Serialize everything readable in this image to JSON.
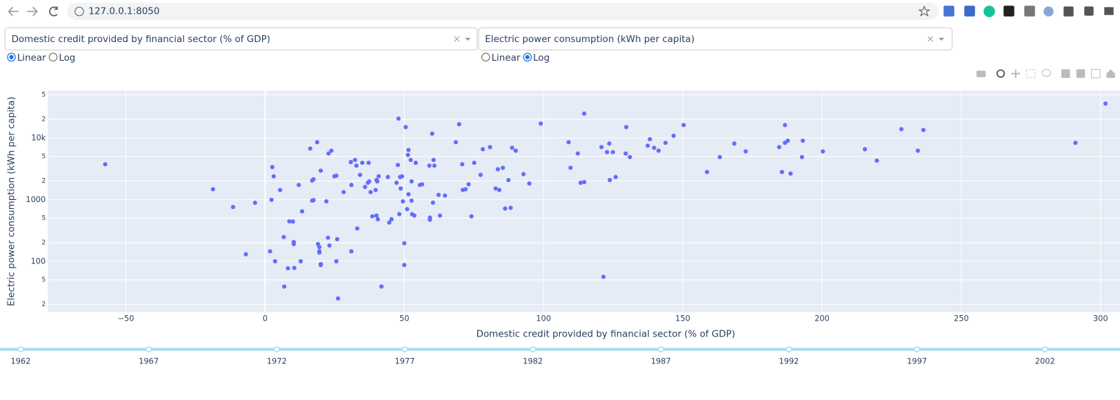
{
  "browser": {
    "url": "127.0.0.1:8050"
  },
  "controls": {
    "x_dropdown": "Domestic credit provided by financial sector (% of GDP)",
    "y_dropdown": "Electric power consumption (kWh per capita)",
    "x_scale": {
      "options": [
        "Linear",
        "Log"
      ],
      "selected": "Linear"
    },
    "y_scale": {
      "options": [
        "Linear",
        "Log"
      ],
      "selected": "Log"
    }
  },
  "chart_data": {
    "type": "scatter",
    "x_label": "Domestic credit provided by financial sector (% of GDP)",
    "y_label": "Electric power consumption (kWh per capita)",
    "color": "#636efa",
    "ylog": true,
    "grid": true,
    "xlim": [
      -78,
      307
    ],
    "ylim": [
      15,
      58000
    ],
    "xticks": [
      {
        "value": -50,
        "label": "−50"
      },
      0,
      50,
      100,
      150,
      200,
      250,
      300
    ],
    "yticks": [
      {
        "value": 20,
        "label": "2"
      },
      {
        "value": 50,
        "label": "5"
      },
      100,
      {
        "value": 200,
        "label": "2"
      },
      {
        "value": 500,
        "label": "5"
      },
      1000,
      {
        "value": 2000,
        "label": "2"
      },
      {
        "value": 5000,
        "label": "5"
      },
      {
        "value": 10000,
        "label": "10k"
      },
      {
        "value": 20000,
        "label": "2"
      },
      {
        "value": 50000,
        "label": "5"
      }
    ],
    "x": [
      -57.4,
      -18.7,
      -11.5,
      -3.6,
      -6.9,
      1.8,
      2.3,
      2.6,
      3.1,
      3.6,
      5.4,
      6.7,
      6.9,
      8.2,
      8.7,
      10,
      10.3,
      10.3,
      10.5,
      12.1,
      12.8,
      13.3,
      16.2,
      16.9,
      17.4,
      16.9,
      17.4,
      18.7,
      19,
      19.5,
      19.5,
      19.5,
      20,
      20,
      20,
      22,
      22.6,
      22.8,
      23.1,
      23.8,
      24.9,
      25.6,
      25.6,
      25.9,
      26.2,
      28.2,
      30.8,
      31,
      31,
      32.3,
      32.8,
      33.1,
      34.1,
      34.9,
      35.9,
      36.9,
      37.2,
      37.4,
      37.9,
      38.5,
      39.7,
      40,
      40,
      40.3,
      40.5,
      40.8,
      41.8,
      44.1,
      44.6,
      45.4,
      47.2,
      47.7,
      47.9,
      48.2,
      48.5,
      48.7,
      49.2,
      49.5,
      50,
      50,
      50.5,
      51,
      51.3,
      51.5,
      51.5,
      52.3,
      52.6,
      52.6,
      52.8,
      53.6,
      54.1,
      55.6,
      56.4,
      59,
      59.2,
      59.2,
      60,
      60.3,
      60.5,
      60.8,
      62.3,
      62.8,
      64.6,
      68.5,
      69.7,
      70.8,
      71,
      72,
      73.1,
      74.1,
      75.1,
      77.4,
      78.2,
      80.8,
      82.8,
      83.6,
      84.1,
      85.4,
      86.2,
      87.4,
      88.2,
      88.7,
      90,
      92.8,
      94.9,
      99,
      109,
      109.7,
      112.3,
      113.3,
      114.6,
      114.6,
      120.8,
      121.5,
      122.8,
      123.6,
      123.8,
      124.9,
      125.9,
      129.5,
      129.7,
      131,
      137.4,
      138.2,
      139.7,
      141.3,
      143.8,
      146.7,
      150.3,
      158.7,
      163.3,
      168.5,
      172.6,
      184.6,
      185.6,
      186.7,
      186.7,
      187.7,
      188.7,
      192.8,
      193.1,
      200.3,
      215.4,
      219.7,
      228.5,
      234.4,
      236.4,
      291,
      301.8
    ],
    "values": [
      3730,
      1470,
      757,
      887,
      130,
      145,
      990,
      3360,
      2380,
      100,
      1430,
      247,
      39,
      77,
      444,
      440,
      205,
      190,
      78,
      1725,
      100,
      644,
      6700,
      960,
      980,
      2030,
      2130,
      8500,
      190,
      170,
      138,
      145,
      2940,
      90,
      87,
      935,
      241,
      5570,
      180,
      6190,
      2380,
      2440,
      100,
      228,
      25,
      1320,
      4050,
      145,
      1725,
      4380,
      3540,
      340,
      2510,
      3940,
      1600,
      1870,
      3940,
      1970,
      1320,
      535,
      1430,
      550,
      2070,
      1970,
      480,
      2380,
      39,
      2320,
      424,
      480,
      1870,
      3630,
      20500,
      580,
      2320,
      1510,
      2380,
      935,
      196,
      87,
      14900,
      700,
      5280,
      6360,
      1220,
      4380,
      960,
      1970,
      580,
      550,
      3940,
      1725,
      1770,
      3540,
      510,
      470,
      11700,
      890,
      4380,
      3540,
      1190,
      550,
      1160,
      8500,
      16600,
      3730,
      1430,
      1470,
      1770,
      535,
      3940,
      2510,
      6540,
      7070,
      1510,
      3100,
      1430,
      3270,
      715,
      2070,
      735,
      6890,
      6190,
      2580,
      1820,
      17000,
      8500,
      3270,
      5570,
      1870,
      1920,
      24700,
      7070,
      56,
      5870,
      8080,
      2070,
      5870,
      2320,
      5570,
      14900,
      4870,
      7460,
      9480,
      6890,
      6190,
      8300,
      10800,
      16100,
      2790,
      4870,
      8080,
      6030,
      7070,
      2790,
      16100,
      8300,
      8990,
      2640,
      4870,
      8990,
      6030,
      6540,
      4270,
      13800,
      6190,
      13400,
      8300,
      35900
    ]
  },
  "slider": {
    "marks": [
      1962,
      1967,
      1972,
      1977,
      1982,
      1987,
      1992,
      1997,
      2002
    ]
  }
}
